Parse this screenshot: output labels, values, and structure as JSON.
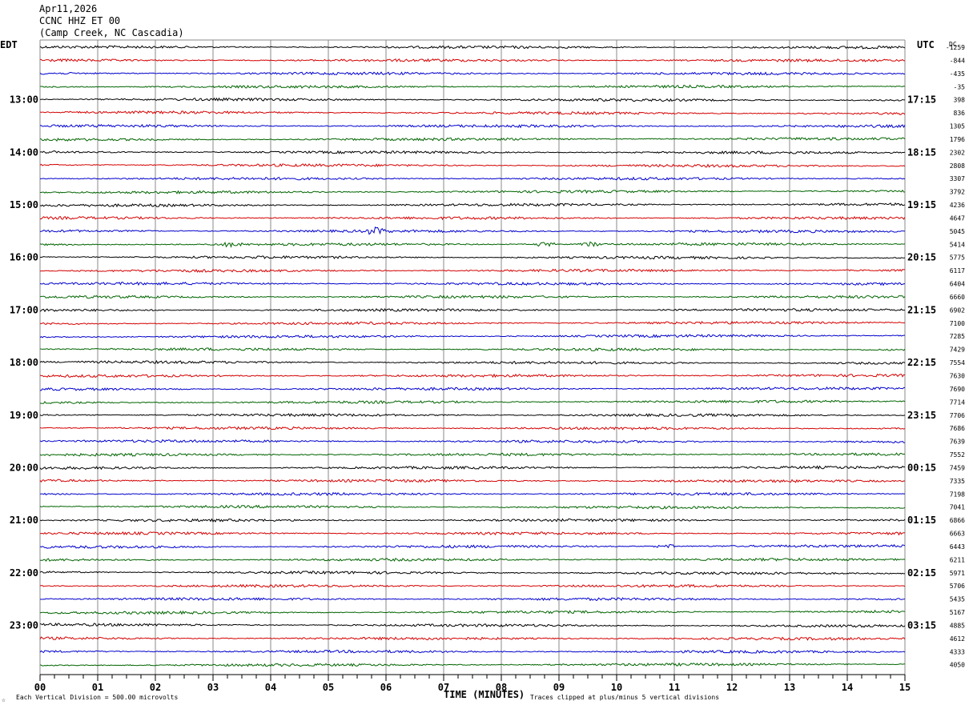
{
  "header": {
    "date": "Apr11,2026",
    "station": "CCNC HHZ ET 00",
    "location": "(Camp Creek, NC Cascadia)"
  },
  "labels": {
    "left_tz": "EDT",
    "right_tz": "UTC",
    "dc_header": "DC"
  },
  "footer": {
    "scale_note": "Each Vertical Division =  500.00 microvolts",
    "xlabel": "TIME (MINUTES)",
    "clip_note": "Traces clipped at plus/minus 5 vertical divisions"
  },
  "chart_data": {
    "type": "line",
    "title": "CCNC HHZ ET 00",
    "xlabel": "TIME (MINUTES)",
    "xlim": [
      0,
      15
    ],
    "x_ticks": [
      "00",
      "01",
      "02",
      "03",
      "04",
      "05",
      "06",
      "07",
      "08",
      "09",
      "10",
      "11",
      "12",
      "13",
      "14",
      "15"
    ],
    "trace_colors": [
      "#000000",
      "#d40000",
      "#0000cc",
      "#006400"
    ],
    "trace_count": 48,
    "left_time_labels": [
      "13:00",
      "14:00",
      "15:00",
      "16:00",
      "17:00",
      "18:00",
      "19:00",
      "20:00",
      "21:00",
      "22:00",
      "23:00"
    ],
    "right_time_labels": [
      "17:15",
      "18:15",
      "19:15",
      "20:15",
      "21:15",
      "22:15",
      "23:15",
      "00:15",
      "01:15",
      "02:15",
      "03:15"
    ],
    "dc_offsets": [
      -1259,
      -844,
      -435,
      -35,
      398,
      836,
      1305,
      1796,
      2302,
      2808,
      3307,
      3792,
      4236,
      4647,
      5045,
      5414,
      5775,
      6117,
      6404,
      6660,
      6902,
      7100,
      7285,
      7429,
      7554,
      7630,
      7690,
      7714,
      7706,
      7686,
      7639,
      7552,
      7459,
      7335,
      7198,
      7041,
      6866,
      6663,
      6443,
      6211,
      5971,
      5706,
      5435,
      5167,
      4885,
      4612,
      4333,
      4050
    ],
    "events": [
      {
        "trace": 14,
        "minute": 5.8,
        "strength": 5
      },
      {
        "trace": 15,
        "minute": 3.35,
        "strength": 4
      },
      {
        "trace": 15,
        "minute": 8.75,
        "strength": 4
      },
      {
        "trace": 15,
        "minute": 9.55,
        "strength": 4
      },
      {
        "trace": 38,
        "minute": 10.85,
        "strength": 3
      }
    ]
  }
}
